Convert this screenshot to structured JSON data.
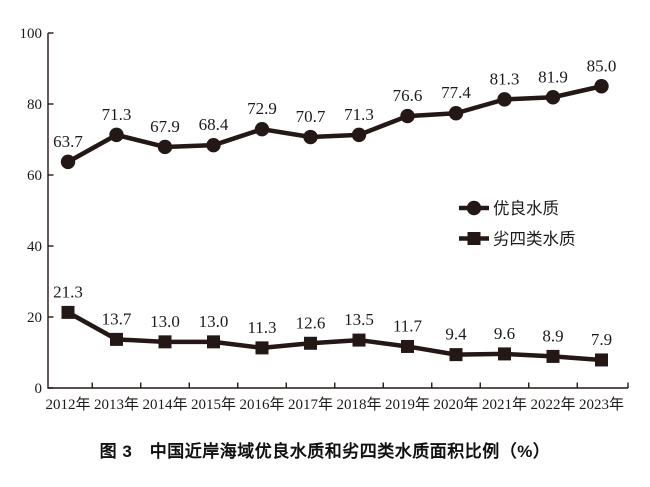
{
  "chart_data": {
    "type": "line",
    "title": "图 3　中国近岸海域优良水质和劣四类水质面积比例（%）",
    "categories": [
      "2012年",
      "2013年",
      "2014年",
      "2015年",
      "2016年",
      "2017年",
      "2018年",
      "2019年",
      "2020年",
      "2021年",
      "2022年",
      "2023年"
    ],
    "series": [
      {
        "name": "优良水质",
        "marker": "circle",
        "values": [
          63.7,
          71.3,
          67.9,
          68.4,
          72.9,
          70.7,
          71.3,
          76.6,
          77.4,
          81.3,
          81.9,
          85.0
        ]
      },
      {
        "name": "劣四类水质",
        "marker": "square",
        "values": [
          21.3,
          13.7,
          13.0,
          13.0,
          11.3,
          12.6,
          13.5,
          11.7,
          9.4,
          9.6,
          8.9,
          7.9
        ]
      }
    ],
    "ylim": [
      0,
      100
    ],
    "yticks": [
      0,
      20,
      40,
      60,
      80,
      100
    ],
    "xlabel": "",
    "ylabel": "",
    "grid": false,
    "legend_position": "right-middle",
    "line_color": "#231815",
    "text_color": "#1b1b1b",
    "background": "#ffffff"
  }
}
